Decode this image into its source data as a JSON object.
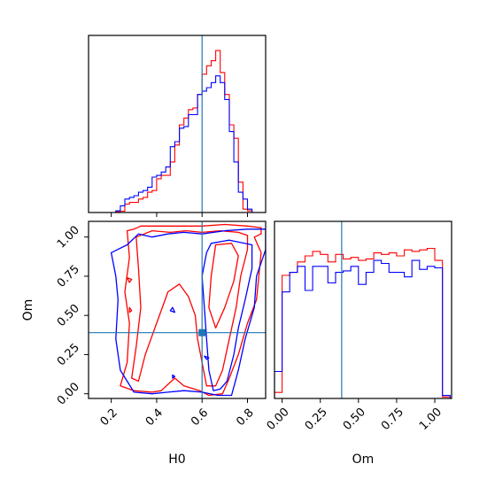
{
  "chart_data": {
    "type": "corner",
    "parameters": [
      "H0",
      "Om"
    ],
    "truth": {
      "H0": 0.6,
      "Om": 0.39
    },
    "colors": {
      "red": "#ff0000",
      "blue": "#0000ff",
      "truth": "#1f77b4"
    },
    "hist_H0": {
      "bin_edges": [
        0.1,
        0.12,
        0.14,
        0.16,
        0.18,
        0.2,
        0.22,
        0.24,
        0.26,
        0.28,
        0.3,
        0.32,
        0.34,
        0.36,
        0.38,
        0.4,
        0.42,
        0.44,
        0.46,
        0.48,
        0.5,
        0.52,
        0.54,
        0.56,
        0.58,
        0.6,
        0.62,
        0.64,
        0.66,
        0.68,
        0.7,
        0.72,
        0.74,
        0.76,
        0.78,
        0.8,
        0.82,
        0.84,
        0.86,
        0.88
      ],
      "red": [
        0,
        0,
        0,
        0,
        0,
        0,
        0.005,
        0.008,
        0.05,
        0.06,
        0.06,
        0.08,
        0.09,
        0.12,
        0.13,
        0.2,
        0.22,
        0.22,
        0.3,
        0.4,
        0.52,
        0.56,
        0.61,
        0.62,
        0.7,
        0.82,
        0.87,
        0.9,
        0.96,
        0.83,
        0.7,
        0.52,
        0.44,
        0.18,
        0.02,
        0.01,
        0,
        0,
        0
      ],
      "blue": [
        0,
        0,
        0,
        0,
        0,
        0,
        0.01,
        0.04,
        0.08,
        0.09,
        0.1,
        0.12,
        0.13,
        0.15,
        0.21,
        0.22,
        0.24,
        0.27,
        0.39,
        0.42,
        0.5,
        0.51,
        0.58,
        0.58,
        0.7,
        0.72,
        0.74,
        0.77,
        0.81,
        0.77,
        0.67,
        0.48,
        0.3,
        0.12,
        0.08,
        0.02,
        0,
        0,
        0
      ]
    },
    "hist_Om": {
      "bin_edges": [
        -0.05,
        0.0,
        0.05,
        0.1,
        0.15,
        0.2,
        0.25,
        0.3,
        0.35,
        0.4,
        0.45,
        0.5,
        0.55,
        0.6,
        0.65,
        0.7,
        0.75,
        0.8,
        0.85,
        0.9,
        0.95,
        1.0,
        1.05,
        1.1
      ],
      "red": [
        0.04,
        0.82,
        0.84,
        0.91,
        0.95,
        0.98,
        0.96,
        0.91,
        0.96,
        0.93,
        0.94,
        0.92,
        0.93,
        0.97,
        0.96,
        0.97,
        0.95,
        0.99,
        0.98,
        0.99,
        1.0,
        0.92,
        0.01
      ],
      "blue": [
        0.18,
        0.71,
        0.84,
        0.88,
        0.72,
        0.88,
        0.88,
        0.77,
        0.84,
        0.85,
        0.88,
        0.76,
        0.84,
        0.92,
        0.9,
        0.84,
        0.84,
        0.81,
        0.92,
        0.86,
        0.88,
        0.87,
        0.02
      ]
    },
    "contours": {
      "red": [
        [
          [
            0.27,
            1.04
          ],
          [
            0.3,
            1.05
          ],
          [
            0.33,
            1.07
          ],
          [
            0.37,
            1.07
          ],
          [
            0.45,
            1.07
          ],
          [
            0.5,
            1.07
          ],
          [
            0.6,
            1.07
          ],
          [
            0.7,
            1.08
          ],
          [
            0.8,
            1.07
          ],
          [
            0.86,
            1.06
          ],
          [
            0.86,
            1.02
          ],
          [
            0.83,
            1.0
          ],
          [
            0.86,
            0.9
          ],
          [
            0.85,
            0.75
          ],
          [
            0.84,
            0.6
          ],
          [
            0.8,
            0.45
          ],
          [
            0.76,
            0.25
          ],
          [
            0.72,
            0.1
          ],
          [
            0.69,
            0.0
          ],
          [
            0.63,
            -0.01
          ],
          [
            0.59,
            0.02
          ],
          [
            0.52,
            0.05
          ],
          [
            0.48,
            0.1
          ],
          [
            0.42,
            0.02
          ],
          [
            0.38,
            0.01
          ],
          [
            0.3,
            0.02
          ],
          [
            0.24,
            0.05
          ],
          [
            0.27,
            0.2
          ],
          [
            0.28,
            0.45
          ],
          [
            0.26,
            0.65
          ],
          [
            0.28,
            0.87
          ],
          [
            0.27,
            1.04
          ]
        ],
        [
          [
            0.31,
            1.0
          ],
          [
            0.38,
            1.04
          ],
          [
            0.46,
            1.03
          ],
          [
            0.53,
            1.04
          ],
          [
            0.6,
            1.03
          ],
          [
            0.68,
            1.04
          ],
          [
            0.76,
            1.03
          ],
          [
            0.8,
            1.01
          ],
          [
            0.8,
            0.92
          ],
          [
            0.77,
            0.75
          ],
          [
            0.75,
            0.55
          ],
          [
            0.72,
            0.35
          ],
          [
            0.69,
            0.15
          ],
          [
            0.66,
            0.05
          ],
          [
            0.62,
            0.05
          ],
          [
            0.6,
            0.2
          ],
          [
            0.58,
            0.35
          ],
          [
            0.57,
            0.5
          ],
          [
            0.54,
            0.62
          ],
          [
            0.5,
            0.7
          ],
          [
            0.45,
            0.65
          ],
          [
            0.4,
            0.45
          ],
          [
            0.35,
            0.25
          ],
          [
            0.32,
            0.08
          ],
          [
            0.29,
            0.1
          ],
          [
            0.31,
            0.3
          ],
          [
            0.33,
            0.55
          ],
          [
            0.32,
            0.8
          ],
          [
            0.31,
            1.0
          ]
        ],
        [
          [
            0.66,
            0.95
          ],
          [
            0.73,
            0.96
          ],
          [
            0.76,
            0.88
          ],
          [
            0.74,
            0.72
          ],
          [
            0.7,
            0.55
          ],
          [
            0.66,
            0.42
          ],
          [
            0.63,
            0.55
          ],
          [
            0.64,
            0.75
          ],
          [
            0.66,
            0.95
          ]
        ],
        [
          [
            0.27,
            0.74
          ],
          [
            0.29,
            0.73
          ],
          [
            0.28,
            0.71
          ],
          [
            0.27,
            0.74
          ]
        ],
        [
          [
            0.28,
            0.55
          ],
          [
            0.29,
            0.53
          ],
          [
            0.28,
            0.52
          ],
          [
            0.28,
            0.55
          ]
        ]
      ],
      "blue": [
        [
          [
            0.2,
            0.9
          ],
          [
            0.27,
            0.95
          ],
          [
            0.32,
            1.02
          ],
          [
            0.38,
            1.0
          ],
          [
            0.45,
            1.02
          ],
          [
            0.52,
            1.03
          ],
          [
            0.6,
            1.02
          ],
          [
            0.7,
            1.04
          ],
          [
            0.8,
            1.05
          ],
          [
            0.88,
            1.05
          ],
          [
            0.88,
            0.92
          ],
          [
            0.84,
            0.75
          ],
          [
            0.83,
            0.55
          ],
          [
            0.79,
            0.35
          ],
          [
            0.76,
            0.15
          ],
          [
            0.73,
            -0.01
          ],
          [
            0.67,
            -0.01
          ],
          [
            0.6,
            0.01
          ],
          [
            0.52,
            0.02
          ],
          [
            0.45,
            0.01
          ],
          [
            0.38,
            0.0
          ],
          [
            0.3,
            0.01
          ],
          [
            0.24,
            0.15
          ],
          [
            0.22,
            0.35
          ],
          [
            0.23,
            0.6
          ],
          [
            0.22,
            0.75
          ],
          [
            0.2,
            0.9
          ]
        ],
        [
          [
            0.64,
            0.96
          ],
          [
            0.72,
            0.98
          ],
          [
            0.82,
            0.95
          ],
          [
            0.82,
            0.8
          ],
          [
            0.79,
            0.6
          ],
          [
            0.76,
            0.42
          ],
          [
            0.74,
            0.25
          ],
          [
            0.71,
            0.08
          ],
          [
            0.68,
            0.03
          ],
          [
            0.65,
            0.02
          ],
          [
            0.63,
            0.15
          ],
          [
            0.62,
            0.35
          ],
          [
            0.61,
            0.55
          ],
          [
            0.6,
            0.75
          ],
          [
            0.62,
            0.9
          ],
          [
            0.64,
            0.96
          ]
        ],
        [
          [
            0.46,
            0.53
          ],
          [
            0.47,
            0.55
          ],
          [
            0.48,
            0.52
          ],
          [
            0.46,
            0.53
          ]
        ],
        [
          [
            0.61,
            0.24
          ],
          [
            0.63,
            0.23
          ],
          [
            0.62,
            0.22
          ],
          [
            0.61,
            0.24
          ]
        ],
        [
          [
            0.47,
            0.12
          ],
          [
            0.48,
            0.11
          ],
          [
            0.47,
            0.1
          ],
          [
            0.47,
            0.12
          ]
        ]
      ]
    },
    "H0_ticks": [
      0.2,
      0.4,
      0.6,
      0.8
    ],
    "H0_tick_labels": [
      "0.2",
      "0.4",
      "0.6",
      "0.8"
    ],
    "Om_ticks_2d": [
      0.0,
      0.25,
      0.5,
      0.75,
      1.0
    ],
    "Om_tick_labels_2d": [
      "0.00",
      "0.25",
      "0.50",
      "0.75",
      "1.00"
    ],
    "Om_ticks_1d": [
      0.0,
      0.25,
      0.5,
      0.75,
      1.0
    ],
    "Om_tick_labels_1d": [
      "0.00",
      "0.25",
      "0.50",
      "0.75",
      "1.00"
    ],
    "H0_range": [
      0.1,
      0.88
    ],
    "Om_range_2d": [
      -0.03,
      1.1
    ],
    "Om_range_1d": [
      -0.05,
      1.11
    ],
    "xlabel_H0": "H0",
    "xlabel_Om": "Om",
    "ylabel_Om": "Om"
  }
}
